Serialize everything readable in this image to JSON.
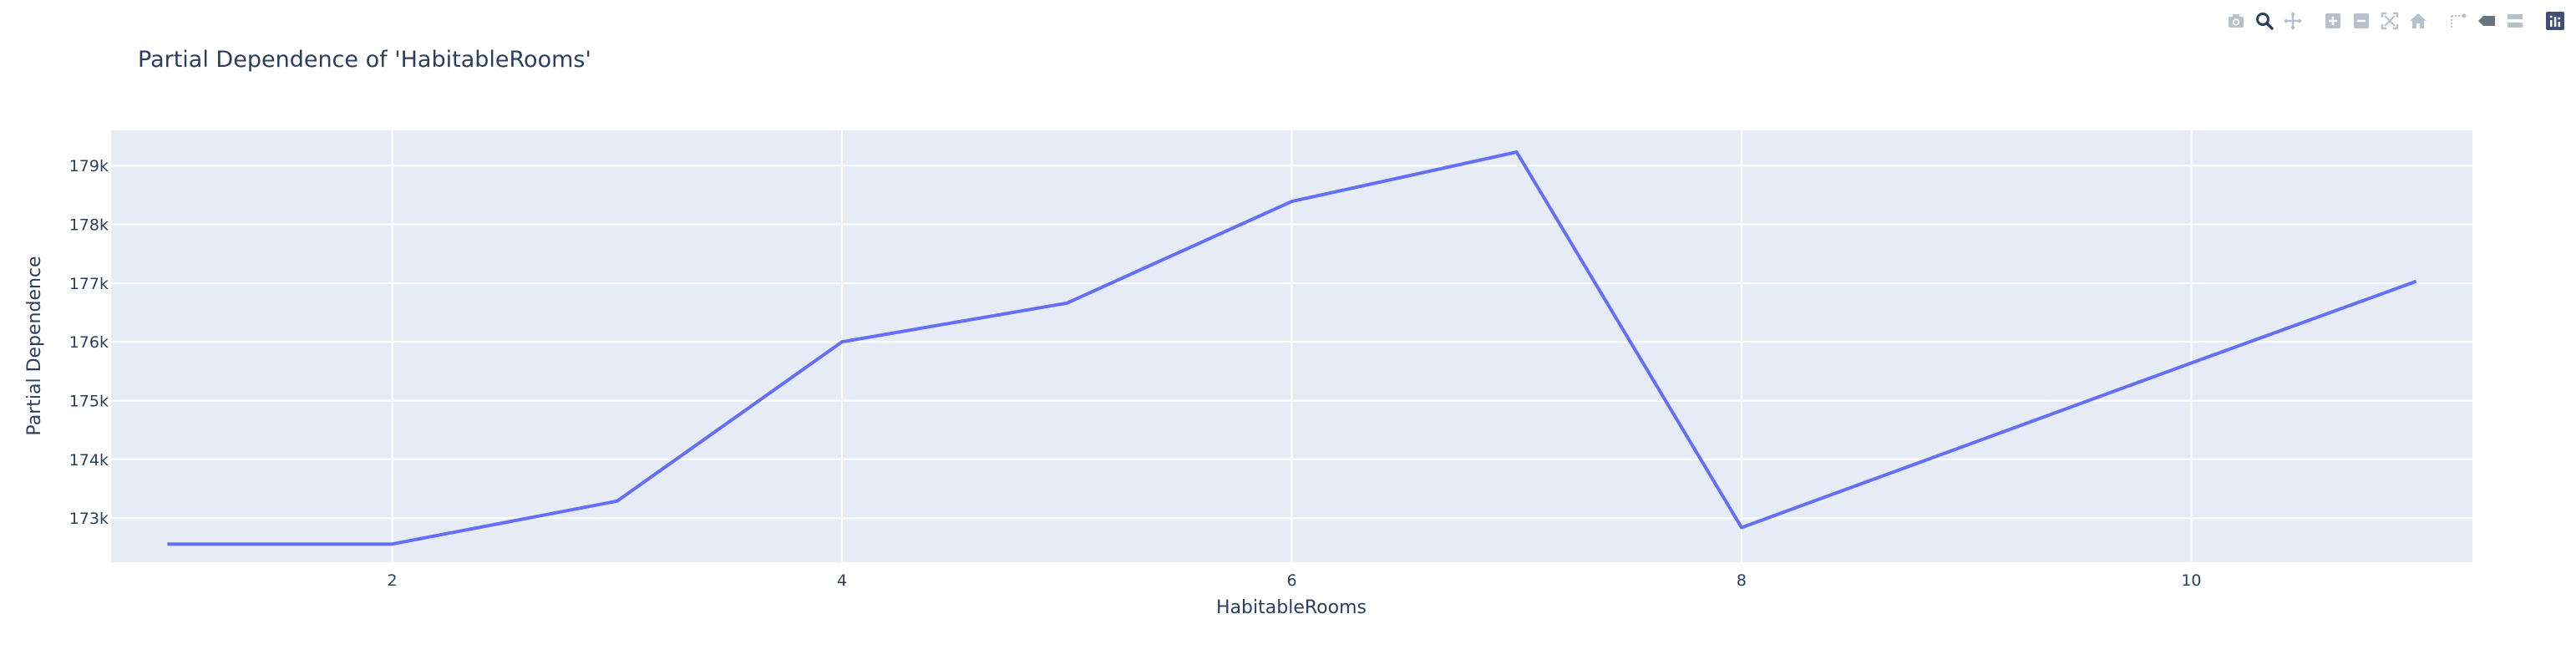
{
  "modebar": {
    "buttons": [
      {
        "name": "camera-icon"
      },
      {
        "name": "zoom-icon"
      },
      {
        "name": "pan-icon"
      },
      {
        "name": "zoom-in-icon"
      },
      {
        "name": "zoom-out-icon"
      },
      {
        "name": "autoscale-icon"
      },
      {
        "name": "home-icon"
      },
      {
        "name": "spike-lines-icon"
      },
      {
        "name": "hover-closest-icon"
      },
      {
        "name": "hover-compare-icon"
      },
      {
        "name": "plotly-logo-icon"
      }
    ]
  },
  "chart_data": {
    "type": "line",
    "title": "Partial Dependence of 'HabitableRooms'",
    "xlabel": "HabitableRooms",
    "ylabel": "Partial Dependence",
    "xlim": [
      0.75,
      11.25
    ],
    "ylim": [
      172250,
      179600
    ],
    "x_ticks": [
      2,
      4,
      6,
      8,
      10
    ],
    "y_ticks": [
      173000,
      174000,
      175000,
      176000,
      177000,
      178000,
      179000
    ],
    "y_tick_labels": [
      "173k",
      "174k",
      "175k",
      "176k",
      "177k",
      "178k",
      "179k"
    ],
    "grid": true,
    "colors": {
      "line": "#636efa",
      "plot_bg": "#e5ecf6",
      "grid": "#ffffff"
    },
    "series": [
      {
        "x": [
          1,
          2,
          3,
          4,
          5,
          6,
          7,
          8,
          9,
          10,
          11
        ],
        "values": [
          172560,
          172560,
          173290,
          176000,
          176660,
          178390,
          179230,
          172840,
          174240,
          175640,
          177030
        ]
      }
    ]
  }
}
